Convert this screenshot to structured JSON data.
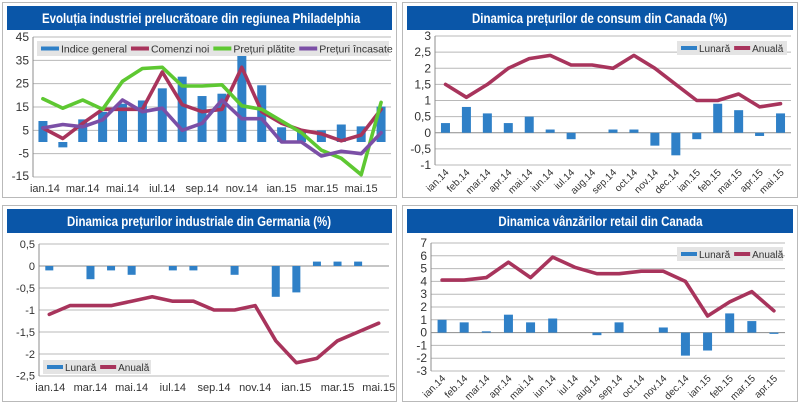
{
  "colors": {
    "title_bg": "#0a56a8",
    "bar": "#2f80c7",
    "red_line": "#a8345c",
    "green_line": "#5ec832",
    "purple_line": "#7b4fa6",
    "grid": "#b8b8b8",
    "legend_bg": "#e4e4e4"
  },
  "chart_data": [
    {
      "id": "philly",
      "type": "bar",
      "title": "Evoluția industriei prelucrătoare din regiunea Philadelphia",
      "categories": [
        "ian.14",
        "feb.14",
        "mar.14",
        "apr.14",
        "mai.14",
        "iun.14",
        "iul.14",
        "aug.14",
        "sep.14",
        "oct.14",
        "nov.14",
        "dec.14",
        "ian.15",
        "feb.15",
        "mar.15",
        "apr.15",
        "mai.15",
        "iun.15"
      ],
      "tick_labels": [
        "ian.14",
        "mar.14",
        "mai.14",
        "iul.14",
        "sep.14",
        "nov.14",
        "ian.15",
        "mar.15",
        "mai.15"
      ],
      "ylim": [
        -15,
        45
      ],
      "yticks": [
        "45",
        "35",
        "25",
        "15",
        "5",
        "-5",
        "-15"
      ],
      "ytick_values": [
        45,
        35,
        25,
        15,
        5,
        -5,
        -15
      ],
      "legend": "top",
      "series": [
        {
          "name": "Indice general",
          "kind": "bar",
          "color": "#2f80c7",
          "values": [
            9.0,
            -2.3,
            9.7,
            12.9,
            16.4,
            17.8,
            23.0,
            28.0,
            19.7,
            20.7,
            40.8,
            24.3,
            6.3,
            5.2,
            5.0,
            7.5,
            6.7,
            15.2
          ]
        },
        {
          "name": "Comenzi noi",
          "kind": "line",
          "color": "#a8345c",
          "values": [
            6.0,
            1.5,
            8.0,
            14.0,
            14.0,
            14.0,
            30.0,
            16.0,
            13.0,
            14.0,
            32.0,
            13.0,
            8.0,
            5.0,
            3.5,
            0.5,
            3.0,
            14.0
          ]
        },
        {
          "name": "Prețuri plătite",
          "kind": "line",
          "color": "#5ec832",
          "values": [
            18.5,
            14.5,
            18.0,
            14.0,
            26.0,
            31.5,
            32.0,
            24.0,
            24.0,
            24.5,
            15.5,
            14.0,
            9.0,
            4.0,
            -3.5,
            -7.0,
            -14.0,
            17.0
          ]
        },
        {
          "name": "Prețuri încasate",
          "kind": "line",
          "color": "#7b4fa6",
          "values": [
            6.0,
            7.5,
            6.5,
            9.5,
            18.0,
            13.0,
            14.5,
            5.0,
            8.0,
            18.0,
            10.0,
            10.0,
            0.0,
            0.0,
            -6.0,
            -4.0,
            -5.0,
            4.0
          ]
        }
      ]
    },
    {
      "id": "canada_cpi",
      "type": "bar",
      "title": "Dinamica prețurilor de consum din Canada (%)",
      "categories": [
        "ian.14",
        "feb.14",
        "mar.14",
        "apr.14",
        "mai.14",
        "iun.14",
        "iul.14",
        "aug.14",
        "sep.14",
        "oct.14",
        "nov.14",
        "dec.14",
        "ian.15",
        "feb.15",
        "mar.15",
        "apr.15",
        "mai.15"
      ],
      "tick_labels": [
        "ian.14",
        "feb.14",
        "mar.14",
        "apr.14",
        "mai.14",
        "iun.14",
        "iul.14",
        "aug.14",
        "sep.14",
        "oct.14",
        "nov.14",
        "dec.14",
        "ian.15",
        "feb.15",
        "mar.15",
        "apr.15",
        "mai.15"
      ],
      "ylim": [
        -1,
        3
      ],
      "yticks": [
        "3",
        "2,5",
        "2",
        "1,5",
        "1",
        "0,5",
        "0",
        "-0,5",
        "-1"
      ],
      "ytick_values": [
        3,
        2.5,
        2,
        1.5,
        1,
        0.5,
        0,
        -0.5,
        -1
      ],
      "legend": "top-right",
      "series": [
        {
          "name": "Lunară",
          "kind": "bar",
          "color": "#2f80c7",
          "values": [
            0.3,
            0.8,
            0.6,
            0.3,
            0.5,
            0.1,
            -0.2,
            0.0,
            0.1,
            0.1,
            -0.4,
            -0.7,
            -0.2,
            0.9,
            0.7,
            -0.1,
            0.6
          ]
        },
        {
          "name": "Anuală",
          "kind": "line",
          "color": "#a8345c",
          "values": [
            1.5,
            1.1,
            1.5,
            2.0,
            2.3,
            2.4,
            2.1,
            2.1,
            2.0,
            2.4,
            2.0,
            1.5,
            1.0,
            1.0,
            1.2,
            0.8,
            0.9
          ]
        }
      ]
    },
    {
      "id": "germany_ppi",
      "type": "bar",
      "title": "Dinamica prețurilor industriale din Germania (%)",
      "categories": [
        "ian.14",
        "feb.14",
        "mar.14",
        "apr.14",
        "mai.14",
        "iun.14",
        "iul.14",
        "aug.14",
        "sep.14",
        "oct.14",
        "nov.14",
        "dec.14",
        "ian.15",
        "feb.15",
        "mar.15",
        "apr.15",
        "mai.15"
      ],
      "tick_labels": [
        "ian.14",
        "mar.14",
        "mai.14",
        "iul.14",
        "sep.14",
        "nov.14",
        "ian.15",
        "mar.15",
        "mai.15"
      ],
      "ylim": [
        -2.5,
        0.5
      ],
      "yticks": [
        "0,5",
        "0",
        "-0,5",
        "-1",
        "-1,5",
        "-2",
        "-2,5"
      ],
      "ytick_values": [
        0.5,
        0,
        -0.5,
        -1,
        -1.5,
        -2,
        -2.5
      ],
      "legend": "bottom-left",
      "series": [
        {
          "name": "Lunară",
          "kind": "bar",
          "color": "#2f80c7",
          "values": [
            -0.1,
            0.0,
            -0.3,
            -0.1,
            -0.2,
            0.0,
            -0.1,
            -0.1,
            0.0,
            -0.2,
            0.0,
            -0.7,
            -0.6,
            0.1,
            0.1,
            0.1,
            0.0
          ]
        },
        {
          "name": "Anuală",
          "kind": "line",
          "color": "#a8345c",
          "values": [
            -1.1,
            -0.9,
            -0.9,
            -0.9,
            -0.8,
            -0.7,
            -0.8,
            -0.8,
            -1.0,
            -1.0,
            -0.9,
            -1.7,
            -2.2,
            -2.1,
            -1.7,
            -1.5,
            -1.3
          ]
        }
      ]
    },
    {
      "id": "canada_retail",
      "type": "bar",
      "title": "Dinamica vânzărilor retail din Canada",
      "categories": [
        "ian.14",
        "feb.14",
        "mar.14",
        "apr.14",
        "mai.14",
        "iun.14",
        "iul.14",
        "aug.14",
        "sep.14",
        "oct.14",
        "nov.14",
        "dec.14",
        "ian.15",
        "feb.15",
        "mar.15",
        "apr.15"
      ],
      "tick_labels": [
        "ian.14",
        "feb.14",
        "mar.14",
        "apr.14",
        "mai.14",
        "iun.14",
        "iul.14",
        "aug.14",
        "sep.14",
        "oct.14",
        "nov.14",
        "dec.14",
        "ian.15",
        "feb.15",
        "mar.15",
        "apr.15"
      ],
      "ylim": [
        -3,
        7
      ],
      "yticks": [
        "7",
        "6",
        "5",
        "4",
        "3",
        "2",
        "1",
        "0",
        "-1",
        "-2",
        "-3"
      ],
      "ytick_values": [
        7,
        6,
        5,
        4,
        3,
        2,
        1,
        0,
        -1,
        -2,
        -3
      ],
      "legend": "top-right",
      "series": [
        {
          "name": "Lunară",
          "kind": "bar",
          "color": "#2f80c7",
          "values": [
            1.0,
            0.8,
            0.1,
            1.4,
            0.8,
            1.1,
            0.0,
            -0.2,
            0.8,
            0.0,
            0.4,
            -1.8,
            -1.4,
            1.5,
            0.9,
            -0.1
          ]
        },
        {
          "name": "Anuală",
          "kind": "line",
          "color": "#a8345c",
          "values": [
            4.1,
            4.1,
            4.3,
            5.5,
            4.3,
            5.9,
            5.1,
            4.6,
            4.6,
            4.8,
            4.8,
            4.0,
            1.3,
            2.4,
            3.2,
            1.7
          ]
        }
      ]
    }
  ]
}
